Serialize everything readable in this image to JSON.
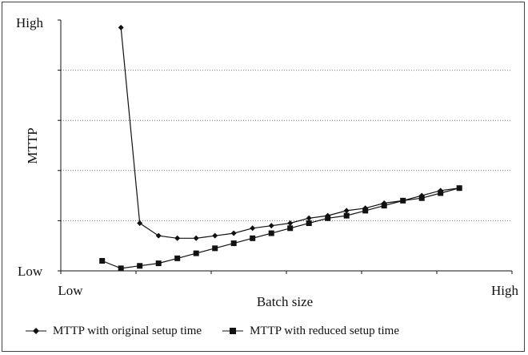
{
  "chart_data": {
    "type": "line",
    "title": "",
    "xlabel": "Batch size",
    "ylabel": "MTTP",
    "x_tick_labels": [
      "Low",
      "High"
    ],
    "y_tick_labels": [
      "Low",
      "High"
    ],
    "xlim": [
      0,
      12
    ],
    "ylim": [
      0,
      100
    ],
    "grid": {
      "horizontal": true,
      "vertical": false
    },
    "legend_position": "bottom",
    "series": [
      {
        "name": "MTTP with original setup time",
        "marker": "diamond",
        "color": "#111111",
        "x": [
          1.6,
          2.1,
          2.6,
          3.1,
          3.6,
          4.1,
          4.6,
          5.1,
          5.6,
          6.1,
          6.6,
          7.1,
          7.6,
          8.1,
          8.6,
          9.1,
          9.6,
          10.1,
          10.6
        ],
        "y": [
          97,
          19,
          14,
          13,
          13,
          14,
          15,
          17,
          18,
          19,
          21,
          22,
          24,
          25,
          27,
          28,
          30,
          32,
          33
        ]
      },
      {
        "name": "MTTP with reduced setup time",
        "marker": "square",
        "color": "#111111",
        "x": [
          1.1,
          1.6,
          2.1,
          2.6,
          3.1,
          3.6,
          4.1,
          4.6,
          5.1,
          5.6,
          6.1,
          6.6,
          7.1,
          7.6,
          8.1,
          8.6,
          9.1,
          9.6,
          10.1,
          10.6
        ],
        "y": [
          4,
          1,
          2,
          3,
          5,
          7,
          9,
          11,
          13,
          15,
          17,
          19,
          21,
          22,
          24,
          26,
          28,
          29,
          31,
          33
        ]
      }
    ]
  }
}
